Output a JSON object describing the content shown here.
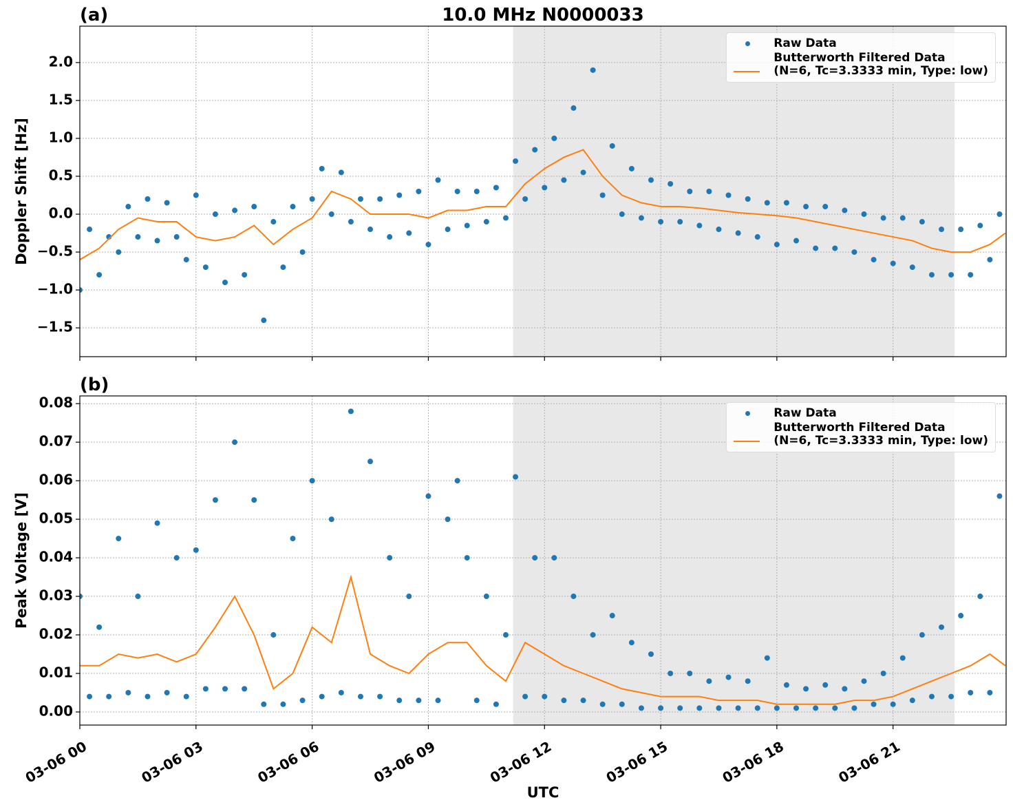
{
  "chart_data": [
    {
      "type": "line",
      "title": "10.0 MHz N0000033",
      "panel_label": "(a)",
      "ylabel": "Doppler Shift [Hz]",
      "grid": true,
      "legend": "upper right",
      "shaded_span": [
        11.19,
        22.59
      ],
      "xlim": [
        0,
        23.92
      ],
      "xticks": [
        0,
        3,
        6,
        9,
        12,
        15,
        18,
        21
      ],
      "ylim": [
        -1.88,
        2.48
      ],
      "yticks": [
        {
          "value": -1.5,
          "label": "−1.5"
        },
        {
          "value": -1.0,
          "label": "−1.0"
        },
        {
          "value": -0.5,
          "label": "−0.5"
        },
        {
          "value": 0.0,
          "label": "0.0"
        },
        {
          "value": 0.5,
          "label": "0.5"
        },
        {
          "value": 1.0,
          "label": "1.0"
        },
        {
          "value": 1.5,
          "label": "1.5"
        },
        {
          "value": 2.0,
          "label": "2.0"
        }
      ],
      "series": [
        {
          "name": "Raw Data",
          "type": "scatter",
          "color": "#1f77b4",
          "x": [
            0,
            0.25,
            0.5,
            0.75,
            1,
            1.25,
            1.5,
            1.75,
            2,
            2.25,
            2.5,
            2.75,
            3,
            3.25,
            3.5,
            3.75,
            4,
            4.25,
            4.5,
            4.75,
            5,
            5.25,
            5.5,
            5.75,
            6,
            6.25,
            6.5,
            6.75,
            7,
            7.25,
            7.5,
            7.75,
            8,
            8.25,
            8.5,
            8.75,
            9,
            9.25,
            9.5,
            9.75,
            10,
            10.25,
            10.5,
            10.75,
            11,
            11.25,
            11.5,
            11.75,
            12,
            12.25,
            12.5,
            12.75,
            13,
            13.25,
            13.5,
            13.75,
            14,
            14.25,
            14.5,
            14.75,
            15,
            15.25,
            15.5,
            15.75,
            16,
            16.25,
            16.5,
            16.75,
            17,
            17.25,
            17.5,
            17.75,
            18,
            18.25,
            18.5,
            18.75,
            19,
            19.25,
            19.5,
            19.75,
            20,
            20.25,
            20.5,
            20.75,
            21,
            21.25,
            21.5,
            21.75,
            22,
            22.25,
            22.5,
            22.75,
            23,
            23.25,
            23.5,
            23.75
          ],
          "values": [
            -1.0,
            -0.2,
            -0.8,
            -0.3,
            -0.5,
            0.1,
            -0.3,
            0.2,
            -0.35,
            0.15,
            -0.3,
            -0.6,
            0.25,
            -0.7,
            0.0,
            -0.9,
            0.05,
            -0.8,
            0.1,
            -1.4,
            -0.1,
            -0.7,
            0.1,
            -0.5,
            0.2,
            0.6,
            0.0,
            0.55,
            -0.1,
            0.2,
            -0.2,
            0.2,
            -0.3,
            0.25,
            -0.25,
            0.3,
            -0.4,
            0.45,
            -0.2,
            0.3,
            -0.15,
            0.3,
            -0.1,
            0.35,
            -0.05,
            0.7,
            0.2,
            0.85,
            0.35,
            1.0,
            0.45,
            1.4,
            0.55,
            1.9,
            0.25,
            0.9,
            0.0,
            0.6,
            -0.05,
            0.45,
            -0.1,
            0.4,
            -0.1,
            0.3,
            -0.15,
            0.3,
            -0.2,
            0.25,
            -0.25,
            0.2,
            -0.3,
            0.15,
            -0.4,
            0.15,
            -0.35,
            0.1,
            -0.45,
            0.1,
            -0.45,
            0.05,
            -0.5,
            0.0,
            -0.6,
            -0.05,
            -0.65,
            -0.05,
            -0.7,
            -0.1,
            -0.8,
            -0.2,
            -0.8,
            -0.2,
            -0.8,
            -0.15,
            -0.6,
            0.0
          ]
        },
        {
          "name": "Butterworth Filtered Data\n(N=6, Tc=3.3333 min, Type: low)",
          "type": "line",
          "color": "#ff7f0e",
          "x": [
            0,
            0.5,
            1,
            1.5,
            2,
            2.5,
            3,
            3.5,
            4,
            4.5,
            5,
            5.5,
            6,
            6.5,
            7,
            7.5,
            8,
            8.5,
            9,
            9.5,
            10,
            10.5,
            11,
            11.5,
            12,
            12.5,
            13,
            13.5,
            14,
            14.5,
            15,
            15.5,
            16,
            16.5,
            17,
            17.5,
            18,
            18.5,
            19,
            19.5,
            20,
            20.5,
            21,
            21.5,
            22,
            22.5,
            23,
            23.5,
            23.9
          ],
          "values": [
            -0.6,
            -0.45,
            -0.2,
            -0.05,
            -0.1,
            -0.1,
            -0.3,
            -0.35,
            -0.3,
            -0.15,
            -0.4,
            -0.2,
            -0.05,
            0.3,
            0.2,
            0.0,
            0.0,
            0.0,
            -0.05,
            0.05,
            0.05,
            0.1,
            0.1,
            0.4,
            0.6,
            0.75,
            0.85,
            0.5,
            0.25,
            0.15,
            0.1,
            0.1,
            0.08,
            0.05,
            0.02,
            0.0,
            -0.02,
            -0.05,
            -0.1,
            -0.15,
            -0.2,
            -0.25,
            -0.3,
            -0.35,
            -0.45,
            -0.5,
            -0.5,
            -0.4,
            -0.25
          ]
        }
      ]
    },
    {
      "type": "line",
      "panel_label": "(b)",
      "ylabel": "Peak Voltage [V]",
      "xlabel": "UTC",
      "grid": true,
      "legend": "upper right",
      "shaded_span": [
        11.19,
        22.59
      ],
      "xlim": [
        0,
        23.92
      ],
      "xticks": [
        {
          "value": 0,
          "label": "03-06 00"
        },
        {
          "value": 3,
          "label": "03-06 03"
        },
        {
          "value": 6,
          "label": "03-06 06"
        },
        {
          "value": 9,
          "label": "03-06 09"
        },
        {
          "value": 12,
          "label": "03-06 12"
        },
        {
          "value": 15,
          "label": "03-06 15"
        },
        {
          "value": 18,
          "label": "03-06 18"
        },
        {
          "value": 21,
          "label": "03-06 21"
        }
      ],
      "ylim": [
        -0.0034,
        0.082
      ],
      "yticks": [
        {
          "value": 0,
          "label": "0.00"
        },
        {
          "value": 0.01,
          "label": "0.01"
        },
        {
          "value": 0.02,
          "label": "0.02"
        },
        {
          "value": 0.03,
          "label": "0.03"
        },
        {
          "value": 0.04,
          "label": "0.04"
        },
        {
          "value": 0.05,
          "label": "0.05"
        },
        {
          "value": 0.06,
          "label": "0.06"
        },
        {
          "value": 0.07,
          "label": "0.07"
        },
        {
          "value": 0.08,
          "label": "0.08"
        }
      ],
      "series": [
        {
          "name": "Raw Data",
          "type": "scatter",
          "color": "#1f77b4",
          "x": [
            0,
            0.25,
            0.5,
            0.75,
            1,
            1.25,
            1.5,
            1.75,
            2,
            2.25,
            2.5,
            2.75,
            3,
            3.25,
            3.5,
            3.75,
            4,
            4.25,
            4.5,
            4.75,
            5,
            5.25,
            5.5,
            5.75,
            6,
            6.25,
            6.5,
            6.75,
            7,
            7.25,
            7.5,
            7.75,
            8,
            8.25,
            8.5,
            8.75,
            9,
            9.25,
            9.5,
            9.75,
            10,
            10.25,
            10.5,
            10.75,
            11,
            11.25,
            11.5,
            11.75,
            12,
            12.25,
            12.5,
            12.75,
            13,
            13.25,
            13.5,
            13.75,
            14,
            14.25,
            14.5,
            14.75,
            15,
            15.25,
            15.5,
            15.75,
            16,
            16.25,
            16.5,
            16.75,
            17,
            17.25,
            17.5,
            17.75,
            18,
            18.25,
            18.5,
            18.75,
            19,
            19.25,
            19.5,
            19.75,
            20,
            20.25,
            20.5,
            20.75,
            21,
            21.25,
            21.5,
            21.75,
            22,
            22.25,
            22.5,
            22.75,
            23,
            23.25,
            23.5,
            23.75
          ],
          "values": [
            0.03,
            0.004,
            0.022,
            0.004,
            0.045,
            0.005,
            0.03,
            0.004,
            0.049,
            0.005,
            0.04,
            0.004,
            0.042,
            0.006,
            0.055,
            0.006,
            0.07,
            0.006,
            0.055,
            0.002,
            0.02,
            0.002,
            0.045,
            0.003,
            0.06,
            0.004,
            0.05,
            0.005,
            0.078,
            0.004,
            0.065,
            0.004,
            0.04,
            0.003,
            0.03,
            0.003,
            0.056,
            0.003,
            0.05,
            0.06,
            0.04,
            0.003,
            0.03,
            0.002,
            0.02,
            0.061,
            0.004,
            0.04,
            0.004,
            0.04,
            0.003,
            0.03,
            0.003,
            0.02,
            0.002,
            0.025,
            0.002,
            0.018,
            0.001,
            0.015,
            0.001,
            0.01,
            0.001,
            0.01,
            0.001,
            0.008,
            0.001,
            0.009,
            0.001,
            0.008,
            0.001,
            0.014,
            0.001,
            0.007,
            0.001,
            0.006,
            0.001,
            0.007,
            0.001,
            0.006,
            0.001,
            0.008,
            0.002,
            0.01,
            0.002,
            0.014,
            0.003,
            0.02,
            0.004,
            0.022,
            0.004,
            0.025,
            0.005,
            0.03,
            0.005,
            0.056
          ]
        },
        {
          "name": "Butterworth Filtered Data\n(N=6, Tc=3.3333 min, Type: low)",
          "type": "line",
          "color": "#ff7f0e",
          "x": [
            0,
            0.5,
            1,
            1.5,
            2,
            2.5,
            3,
            3.5,
            4,
            4.5,
            5,
            5.5,
            6,
            6.5,
            7,
            7.5,
            8,
            8.5,
            9,
            9.5,
            10,
            10.5,
            11,
            11.5,
            12,
            12.5,
            13,
            13.5,
            14,
            14.5,
            15,
            15.5,
            16,
            16.5,
            17,
            17.5,
            18,
            18.5,
            19,
            19.5,
            20,
            20.5,
            21,
            21.5,
            22,
            22.5,
            23,
            23.5,
            23.9
          ],
          "values": [
            0.012,
            0.012,
            0.015,
            0.014,
            0.015,
            0.013,
            0.015,
            0.022,
            0.03,
            0.02,
            0.006,
            0.01,
            0.022,
            0.018,
            0.035,
            0.015,
            0.012,
            0.01,
            0.015,
            0.018,
            0.018,
            0.012,
            0.008,
            0.018,
            0.015,
            0.012,
            0.01,
            0.008,
            0.006,
            0.005,
            0.004,
            0.004,
            0.004,
            0.003,
            0.003,
            0.003,
            0.002,
            0.002,
            0.002,
            0.002,
            0.003,
            0.003,
            0.004,
            0.006,
            0.008,
            0.01,
            0.012,
            0.015,
            0.012
          ]
        }
      ]
    }
  ]
}
